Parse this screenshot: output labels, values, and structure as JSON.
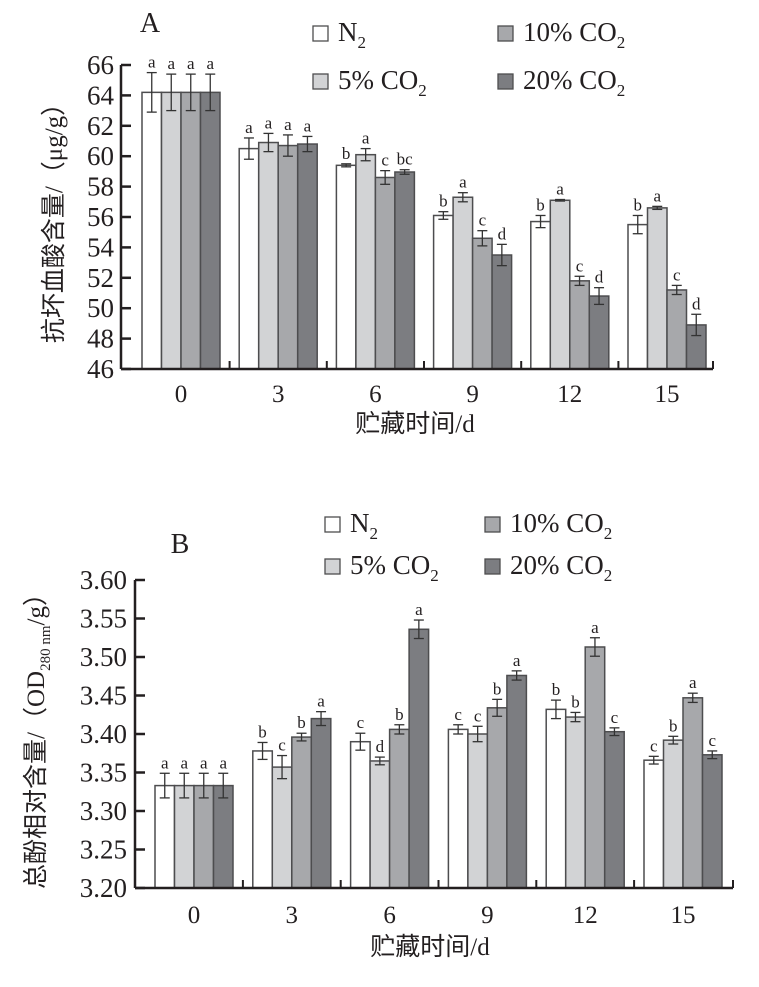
{
  "chart_data": [
    {
      "type": "bar",
      "panel_label": "A",
      "title": "A",
      "xlabel": "贮藏时间/d",
      "ylabel": "抗坏血酸含量/（μg/g）",
      "categories": [
        "0",
        "3",
        "6",
        "9",
        "12",
        "15"
      ],
      "ylim": [
        46,
        66
      ],
      "yticks": [
        "46",
        "48",
        "50",
        "52",
        "54",
        "56",
        "58",
        "60",
        "62",
        "64",
        "66"
      ],
      "legend_position": "top-right",
      "series": [
        {
          "name": "N2",
          "label_main": "N",
          "label_sub": "2",
          "color": "#ffffff",
          "values": [
            64.2,
            60.5,
            59.4,
            56.1,
            55.7,
            55.5
          ],
          "errors": [
            1.3,
            0.7,
            0.1,
            0.25,
            0.4,
            0.6
          ],
          "letters": [
            "a",
            "a",
            "b",
            "b",
            "b",
            "b"
          ]
        },
        {
          "name": "5% CO2",
          "label_main": "5% CO",
          "label_sub": "2",
          "color": "#d2d3d5",
          "values": [
            64.2,
            60.9,
            60.1,
            57.3,
            57.1,
            56.6
          ],
          "errors": [
            1.2,
            0.6,
            0.4,
            0.3,
            0.05,
            0.1
          ],
          "letters": [
            "a",
            "a",
            "a",
            "a",
            "a",
            "a"
          ]
        },
        {
          "name": "10% CO2",
          "label_main": "10% CO",
          "label_sub": "2",
          "color": "#a7a8ab",
          "values": [
            64.2,
            60.7,
            58.6,
            54.6,
            51.8,
            51.2
          ],
          "errors": [
            1.2,
            0.7,
            0.45,
            0.5,
            0.3,
            0.3
          ],
          "letters": [
            "a",
            "a",
            "c",
            "c",
            "c",
            "c"
          ]
        },
        {
          "name": "20% CO2",
          "label_main": "20% CO",
          "label_sub": "2",
          "color": "#7c7d81",
          "values": [
            64.2,
            60.8,
            58.96,
            53.5,
            50.8,
            48.9
          ],
          "errors": [
            1.2,
            0.5,
            0.15,
            0.7,
            0.55,
            0.7
          ],
          "letters": [
            "a",
            "a",
            "bc",
            "d",
            "d",
            "d"
          ]
        }
      ]
    },
    {
      "type": "bar",
      "panel_label": "B",
      "title": "B",
      "xlabel": "贮藏时间/d",
      "ylabel_main": "总酚相对含量/（OD",
      "ylabel_sub": "280 nm",
      "ylabel_tail": "/g）",
      "ylabel": "总酚相对含量/（OD280 nm/g）",
      "categories": [
        "0",
        "3",
        "6",
        "9",
        "12",
        "15"
      ],
      "ylim": [
        3.2,
        3.6
      ],
      "yticks": [
        "3.20",
        "3.25",
        "3.30",
        "3.35",
        "3.40",
        "3.45",
        "3.50",
        "3.55",
        "3.60"
      ],
      "legend_position": "top-right",
      "series": [
        {
          "name": "N2",
          "label_main": "N",
          "label_sub": "2",
          "color": "#ffffff",
          "values": [
            3.333,
            3.378,
            3.39,
            3.406,
            3.432,
            3.366
          ],
          "errors": [
            0.016,
            0.011,
            0.011,
            0.006,
            0.012,
            0.005
          ],
          "letters": [
            "a",
            "b",
            "c",
            "c",
            "b",
            "c"
          ]
        },
        {
          "name": "5% CO2",
          "label_main": "5% CO",
          "label_sub": "2",
          "color": "#d2d3d5",
          "values": [
            3.333,
            3.357,
            3.365,
            3.4,
            3.422,
            3.392
          ],
          "errors": [
            0.016,
            0.015,
            0.005,
            0.01,
            0.006,
            0.005
          ],
          "letters": [
            "a",
            "c",
            "d",
            "c",
            "b",
            "b"
          ]
        },
        {
          "name": "10% CO2",
          "label_main": "10% CO",
          "label_sub": "2",
          "color": "#a7a8ab",
          "values": [
            3.333,
            3.396,
            3.406,
            3.434,
            3.513,
            3.447
          ],
          "errors": [
            0.016,
            0.005,
            0.006,
            0.011,
            0.012,
            0.006
          ],
          "letters": [
            "a",
            "b",
            "b",
            "b",
            "a",
            "a"
          ]
        },
        {
          "name": "20% CO2",
          "label_main": "20% CO",
          "label_sub": "2",
          "color": "#7c7d81",
          "values": [
            3.333,
            3.42,
            3.536,
            3.476,
            3.403,
            3.373
          ],
          "errors": [
            0.016,
            0.009,
            0.012,
            0.006,
            0.005,
            0.005
          ],
          "letters": [
            "a",
            "a",
            "a",
            "a",
            "c",
            "c"
          ]
        }
      ]
    }
  ]
}
